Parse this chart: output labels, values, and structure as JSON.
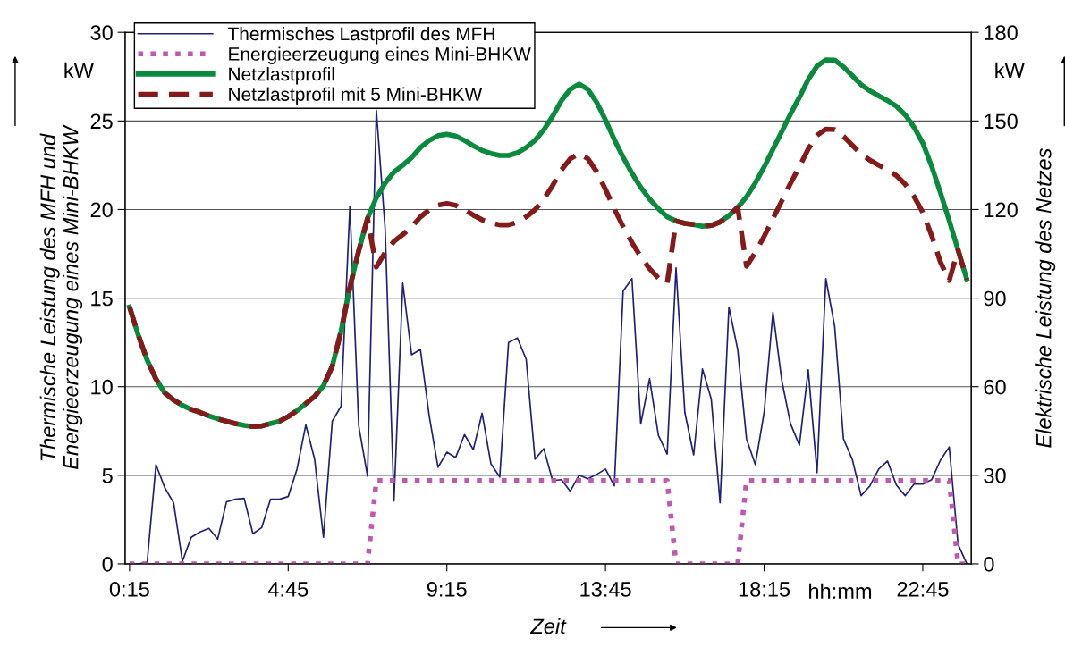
{
  "chart_data": {
    "type": "line",
    "xlabel": "Zeit",
    "ylabel": "Thermische Leistung des MFH und\nEnergieerzeugung eines Mini-BHKW",
    "y2label": "Elektrische Leistung des Netzes",
    "annotations": [
      "kW",
      "kW",
      "hh:mm"
    ],
    "x": [
      0.25,
      0.5,
      0.75,
      1,
      1.25,
      1.5,
      1.75,
      2,
      2.25,
      2.5,
      2.75,
      3,
      3.25,
      3.5,
      3.75,
      4,
      4.25,
      4.5,
      4.75,
      5,
      5.25,
      5.5,
      5.75,
      6,
      6.25,
      6.5,
      6.75,
      7,
      7.25,
      7.5,
      7.75,
      8,
      8.25,
      8.5,
      8.75,
      9,
      9.25,
      9.5,
      9.75,
      10,
      10.25,
      10.5,
      10.75,
      11,
      11.25,
      11.5,
      11.75,
      12,
      12.25,
      12.5,
      12.75,
      13,
      13.25,
      13.5,
      13.75,
      14,
      14.25,
      14.5,
      14.75,
      15,
      15.25,
      15.5,
      15.75,
      16,
      16.25,
      16.5,
      16.75,
      17,
      17.25,
      17.5,
      17.75,
      18,
      18.25,
      18.5,
      18.75,
      19,
      19.25,
      19.5,
      19.75,
      20,
      20.25,
      20.5,
      20.75,
      21,
      21.25,
      21.5,
      21.75,
      22,
      22.25,
      22.5,
      22.75,
      23,
      23.25,
      23.5,
      23.75,
      24
    ],
    "xlim": [
      0.125,
      24.125
    ],
    "xticks": [
      {
        "value": 0.25,
        "label": "0:15"
      },
      {
        "value": 4.75,
        "label": "4:45"
      },
      {
        "value": 9.25,
        "label": "9:15"
      },
      {
        "value": 13.75,
        "label": "13:45"
      },
      {
        "value": 18.25,
        "label": "18:15"
      },
      {
        "value": 22.75,
        "label": "22:45"
      }
    ],
    "ylim": [
      0,
      30
    ],
    "yticks": [
      0,
      5,
      10,
      15,
      20,
      25,
      30
    ],
    "y2lim": [
      0,
      180
    ],
    "y2ticks": [
      0,
      30,
      60,
      90,
      120,
      150,
      180
    ],
    "grid": "y",
    "legend": "top left",
    "marker": "none",
    "series": [
      {
        "name": "Thermisches Lastprofil des MFH",
        "color": "#1f1f7a",
        "line_style": "solid",
        "values": [
          0,
          0,
          0.1,
          5.6,
          4.3,
          3.45,
          0.15,
          1.5,
          1.8,
          2.0,
          1.4,
          3.5,
          3.65,
          3.7,
          1.7,
          2.05,
          3.65,
          3.65,
          3.8,
          5.35,
          7.85,
          5.9,
          1.5,
          8.05,
          8.9,
          20.2,
          7.8,
          4.95,
          25.6,
          18.9,
          3.55,
          15.85,
          11.8,
          12.1,
          8.35,
          5.45,
          6.3,
          6.0,
          7.3,
          6.45,
          8.5,
          5.65,
          4.9,
          12.5,
          12.75,
          11.55,
          5.9,
          6.5,
          4.7,
          4.75,
          4.1,
          5.0,
          4.8,
          5.05,
          5.35,
          4.4,
          15.4,
          16.1,
          7.9,
          10.45,
          7.25,
          6.2,
          16.7,
          8.55,
          6.15,
          11.0,
          9.3,
          3.45,
          14.5,
          12.1,
          7.05,
          5.6,
          8.55,
          14.2,
          10.35,
          7.9,
          6.7,
          10.95,
          5.15,
          16.1,
          13.4,
          7.05,
          5.9,
          3.85,
          4.4,
          5.35,
          5.8,
          4.45,
          3.85,
          4.5,
          4.5,
          4.75,
          5.85,
          6.6,
          1.1,
          0
        ]
      },
      {
        "name": "Energieerzeugung eines Mini-BHKW",
        "color": "#c058b0",
        "line_style": "dotted",
        "values": [
          0,
          0,
          0,
          0,
          0,
          0,
          0,
          0,
          0,
          0,
          0,
          0,
          0,
          0,
          0,
          0,
          0,
          0,
          0,
          0,
          0,
          0,
          0,
          0,
          0,
          0,
          0,
          0,
          4.7,
          4.7,
          4.7,
          4.7,
          4.7,
          4.7,
          4.7,
          4.7,
          4.7,
          4.7,
          4.7,
          4.7,
          4.7,
          4.7,
          4.7,
          4.7,
          4.7,
          4.7,
          4.7,
          4.7,
          4.7,
          4.7,
          4.7,
          4.7,
          4.7,
          4.7,
          4.7,
          4.7,
          4.7,
          4.7,
          4.7,
          4.7,
          4.7,
          4.7,
          0,
          0,
          0,
          0,
          0,
          0,
          0,
          0,
          4.7,
          4.7,
          4.7,
          4.7,
          4.7,
          4.7,
          4.7,
          4.7,
          4.7,
          4.7,
          4.7,
          4.7,
          4.7,
          4.7,
          4.7,
          4.7,
          4.7,
          4.7,
          4.7,
          4.7,
          4.7,
          4.7,
          4.7,
          4.7,
          0,
          0
        ]
      },
      {
        "name": "Netzlastprofil",
        "color": "#0a8a3c",
        "line_style": "solid",
        "axis": "y2",
        "values": [
          87,
          77.4,
          69,
          62.6,
          57.9,
          55.5,
          53.7,
          52.3,
          51.3,
          50.1,
          49.1,
          48.3,
          47.5,
          46.9,
          46.5,
          46.7,
          47.5,
          48.3,
          49.9,
          51.9,
          54.3,
          56.7,
          60.3,
          66.9,
          78.8,
          93.7,
          106,
          117,
          124,
          129,
          132.7,
          135,
          137.6,
          141,
          143.4,
          145,
          145.5,
          144.9,
          143.4,
          141.6,
          140,
          139,
          138.3,
          138.3,
          139.2,
          141,
          143.4,
          147,
          151.6,
          156.9,
          160.7,
          162.5,
          160.7,
          156.3,
          150.3,
          143.7,
          137.7,
          132.3,
          127.5,
          123.5,
          120.3,
          117.5,
          116.1,
          115.3,
          114.9,
          114.3,
          114.6,
          115.8,
          117.9,
          120.7,
          124.3,
          129,
          134.4,
          140.4,
          146.4,
          152.4,
          158,
          164,
          168.6,
          170.7,
          170.6,
          168.3,
          165.3,
          162.3,
          160.2,
          158.5,
          156.9,
          155,
          152.1,
          147.9,
          142.5,
          134.7,
          125.7,
          116.2,
          106.3,
          96.3
        ]
      },
      {
        "name": "Netzlastprofil mit 5 Mini-BHKW",
        "color": "#851a1a",
        "line_style": "dashed",
        "axis": "y2",
        "values": [
          87,
          77.4,
          69,
          62.6,
          57.9,
          55.5,
          53.7,
          52.3,
          51.3,
          50.1,
          49.1,
          48.3,
          47.5,
          46.9,
          46.5,
          46.7,
          47.5,
          48.3,
          49.9,
          51.9,
          54.3,
          56.7,
          60.3,
          66.9,
          78.8,
          93.7,
          106,
          117,
          100.5,
          105.5,
          109.2,
          111.5,
          114.1,
          117.5,
          119.9,
          121.5,
          122,
          121.4,
          119.9,
          118.1,
          116.5,
          115.5,
          114.8,
          114.8,
          115.7,
          117.5,
          119.9,
          123.5,
          128.1,
          133.4,
          137.2,
          139,
          137.2,
          132.8,
          126.8,
          120.2,
          114.2,
          108.8,
          104,
          100,
          96.8,
          95,
          116.1,
          115.3,
          114.9,
          114.3,
          114.6,
          115.8,
          117.9,
          120.7,
          100.8,
          105.5,
          110.9,
          116.9,
          122.9,
          128.9,
          134.5,
          140.5,
          145.1,
          147.2,
          147.1,
          144.8,
          141.8,
          138.8,
          136.7,
          135,
          133.4,
          131.5,
          128.6,
          124.4,
          119,
          111.2,
          102.2,
          96,
          106.3,
          96.3
        ]
      }
    ]
  }
}
